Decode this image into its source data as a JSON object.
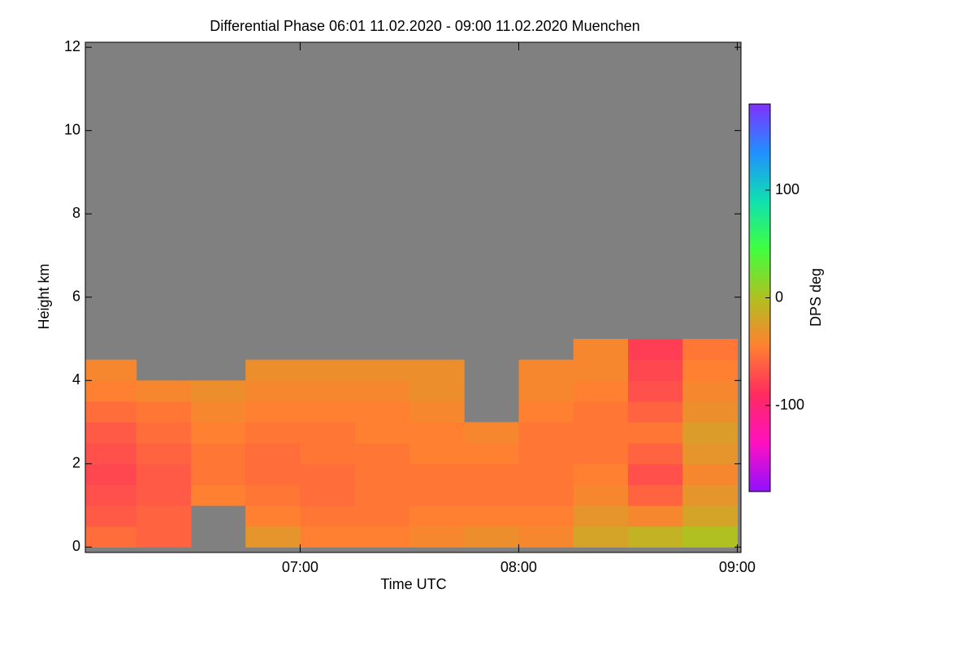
{
  "chart_data": {
    "type": "heatmap",
    "title": "Differential Phase   06:01 11.02.2020 - 09:00 11.02.2020 Muenchen",
    "xlabel": "Time UTC",
    "ylabel": "Height km",
    "colorbar_label": "DPS deg",
    "x": [
      6.125,
      6.375,
      6.625,
      6.875,
      7.125,
      7.375,
      7.625,
      7.875,
      8.125,
      8.375,
      8.625,
      8.875
    ],
    "y": [
      0.25,
      0.75,
      1.25,
      1.75,
      2.25,
      2.75,
      3.25,
      3.75,
      4.25,
      4.75,
      5.25,
      5.75
    ],
    "z": [
      [
        -55,
        -60,
        null,
        -30,
        -45,
        -45,
        -40,
        -35,
        -40,
        -20,
        -10,
        0
      ],
      [
        -65,
        -60,
        null,
        -45,
        -50,
        -50,
        -45,
        -45,
        -45,
        -30,
        -40,
        -20
      ],
      [
        -70,
        -65,
        -45,
        -50,
        -55,
        -50,
        -50,
        -50,
        -50,
        -40,
        -60,
        -30
      ],
      [
        -75,
        -65,
        -50,
        -55,
        -55,
        -50,
        -50,
        -50,
        -50,
        -45,
        -70,
        -40
      ],
      [
        -70,
        -60,
        -50,
        -55,
        -50,
        -50,
        -45,
        -45,
        -50,
        -50,
        -60,
        -30
      ],
      [
        -65,
        -55,
        -45,
        -50,
        -50,
        -45,
        -45,
        -40,
        -50,
        -50,
        -50,
        -25
      ],
      [
        -55,
        -50,
        -40,
        -45,
        -45,
        -45,
        -40,
        null,
        -45,
        -50,
        -60,
        -35
      ],
      [
        -45,
        -40,
        -35,
        -40,
        -40,
        -40,
        -35,
        null,
        -40,
        -45,
        -70,
        -40
      ],
      [
        -40,
        null,
        null,
        -35,
        -35,
        -35,
        -35,
        null,
        -40,
        -40,
        -75,
        -45
      ],
      [
        null,
        null,
        null,
        null,
        null,
        null,
        null,
        null,
        null,
        -40,
        -80,
        -50
      ],
      [
        null,
        null,
        null,
        null,
        null,
        null,
        null,
        null,
        null,
        null,
        null,
        null
      ],
      [
        null,
        null,
        null,
        null,
        null,
        null,
        null,
        null,
        null,
        null,
        null,
        null
      ]
    ],
    "xlim": [
      6.017,
      9.017
    ],
    "xticks": [
      {
        "value": 7,
        "label": "07:00"
      },
      {
        "value": 8,
        "label": "08:00"
      },
      {
        "value": 9,
        "label": "09:00"
      }
    ],
    "ylim": [
      -0.13,
      12.12
    ],
    "yticks": [
      0,
      2,
      4,
      6,
      8,
      10,
      12
    ],
    "zlim": [
      -180,
      180
    ],
    "zticks": [
      -100,
      0,
      100
    ],
    "colormap": [
      "#9010ff",
      "#ff10c0",
      "#ff2a60",
      "#ff8030",
      "#b0c020",
      "#40ff40",
      "#10e0b0",
      "#2090ff",
      "#8030ff"
    ],
    "missing_color": "#808080"
  }
}
